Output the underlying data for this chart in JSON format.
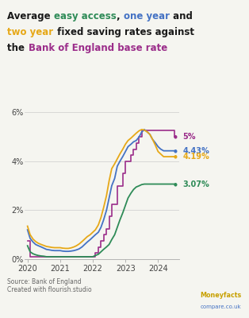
{
  "colors": {
    "base_rate": "#9b2d8a",
    "easy_access": "#2e8b57",
    "one_year": "#4472c4",
    "two_year": "#e6a817"
  },
  "end_labels": {
    "base_rate": {
      "value": "5%",
      "color": "#9b2d8a",
      "y": 5.0
    },
    "one_year": {
      "value": "4.43%",
      "color": "#4472c4",
      "y": 4.43
    },
    "two_year": {
      "value": "4.19%",
      "color": "#e6a817",
      "y": 4.19
    },
    "easy_access": {
      "value": "3.07%",
      "color": "#2e8b57",
      "y": 3.07
    }
  },
  "ylim": [
    0,
    6.5
  ],
  "yticks": [
    0,
    2,
    4,
    6
  ],
  "ytick_labels": [
    "0%",
    "2%",
    "4%",
    "6%"
  ],
  "source_text": "Source: Bank of England\nCreated with flourish.studio",
  "bg_color": "#f5f5f0",
  "base_rate": {
    "dates": [
      2020.0,
      2020.08,
      2020.17,
      2020.25,
      2020.33,
      2020.42,
      2020.5,
      2020.58,
      2020.67,
      2020.75,
      2020.83,
      2020.92,
      2021.0,
      2021.08,
      2021.17,
      2021.25,
      2021.33,
      2021.42,
      2021.5,
      2021.58,
      2021.67,
      2021.75,
      2021.83,
      2021.92,
      2022.0,
      2022.08,
      2022.17,
      2022.25,
      2022.33,
      2022.42,
      2022.5,
      2022.58,
      2022.67,
      2022.75,
      2022.83,
      2022.92,
      2023.0,
      2023.08,
      2023.17,
      2023.25,
      2023.33,
      2023.42,
      2023.5,
      2023.58,
      2023.67,
      2023.75,
      2023.83,
      2023.92,
      2024.0,
      2024.08,
      2024.17,
      2024.25,
      2024.33,
      2024.5
    ],
    "values": [
      0.75,
      0.1,
      0.1,
      0.1,
      0.1,
      0.1,
      0.1,
      0.1,
      0.1,
      0.1,
      0.1,
      0.1,
      0.1,
      0.1,
      0.1,
      0.1,
      0.1,
      0.1,
      0.1,
      0.1,
      0.1,
      0.1,
      0.1,
      0.1,
      0.1,
      0.25,
      0.5,
      0.75,
      1.0,
      1.25,
      1.75,
      2.25,
      2.25,
      3.0,
      3.0,
      3.5,
      4.0,
      4.0,
      4.25,
      4.5,
      4.75,
      5.0,
      5.25,
      5.25,
      5.25,
      5.25,
      5.25,
      5.25,
      5.25,
      5.25,
      5.25,
      5.25,
      5.25,
      5.0
    ]
  },
  "easy_access": {
    "dates": [
      2020.0,
      2020.08,
      2020.17,
      2020.25,
      2020.33,
      2020.42,
      2020.5,
      2020.58,
      2020.67,
      2020.75,
      2020.83,
      2020.92,
      2021.0,
      2021.08,
      2021.17,
      2021.25,
      2021.33,
      2021.42,
      2021.5,
      2021.58,
      2021.67,
      2021.75,
      2021.83,
      2021.92,
      2022.0,
      2022.08,
      2022.17,
      2022.25,
      2022.33,
      2022.42,
      2022.5,
      2022.58,
      2022.67,
      2022.75,
      2022.83,
      2022.92,
      2023.0,
      2023.08,
      2023.17,
      2023.25,
      2023.33,
      2023.42,
      2023.5,
      2023.58,
      2023.67,
      2023.75,
      2023.83,
      2023.92,
      2024.0,
      2024.08,
      2024.17,
      2024.25,
      2024.33,
      2024.5
    ],
    "values": [
      0.55,
      0.3,
      0.22,
      0.18,
      0.15,
      0.13,
      0.12,
      0.1,
      0.1,
      0.1,
      0.1,
      0.1,
      0.1,
      0.1,
      0.1,
      0.1,
      0.1,
      0.1,
      0.1,
      0.1,
      0.1,
      0.1,
      0.1,
      0.1,
      0.1,
      0.15,
      0.2,
      0.3,
      0.4,
      0.5,
      0.6,
      0.8,
      1.0,
      1.3,
      1.6,
      1.9,
      2.2,
      2.5,
      2.7,
      2.85,
      2.95,
      3.0,
      3.05,
      3.07,
      3.07,
      3.07,
      3.07,
      3.07,
      3.07,
      3.07,
      3.07,
      3.07,
      3.07,
      3.07
    ]
  },
  "one_year": {
    "dates": [
      2020.0,
      2020.08,
      2020.17,
      2020.25,
      2020.33,
      2020.42,
      2020.5,
      2020.58,
      2020.67,
      2020.75,
      2020.83,
      2020.92,
      2021.0,
      2021.08,
      2021.17,
      2021.25,
      2021.33,
      2021.42,
      2021.5,
      2021.58,
      2021.67,
      2021.75,
      2021.83,
      2021.92,
      2022.0,
      2022.08,
      2022.17,
      2022.25,
      2022.33,
      2022.42,
      2022.5,
      2022.58,
      2022.67,
      2022.75,
      2022.83,
      2022.92,
      2023.0,
      2023.08,
      2023.17,
      2023.25,
      2023.33,
      2023.42,
      2023.5,
      2023.58,
      2023.67,
      2023.75,
      2023.83,
      2023.92,
      2024.0,
      2024.08,
      2024.17,
      2024.25,
      2024.33,
      2024.5
    ],
    "values": [
      1.2,
      0.85,
      0.7,
      0.6,
      0.55,
      0.5,
      0.45,
      0.4,
      0.38,
      0.36,
      0.35,
      0.35,
      0.35,
      0.33,
      0.32,
      0.32,
      0.33,
      0.35,
      0.38,
      0.42,
      0.5,
      0.6,
      0.7,
      0.8,
      0.9,
      1.0,
      1.1,
      1.3,
      1.6,
      2.0,
      2.5,
      3.0,
      3.3,
      3.8,
      4.0,
      4.2,
      4.4,
      4.6,
      4.7,
      4.8,
      4.85,
      5.0,
      5.2,
      5.3,
      5.2,
      5.1,
      4.9,
      4.75,
      4.6,
      4.5,
      4.43,
      4.43,
      4.43,
      4.43
    ]
  },
  "two_year": {
    "dates": [
      2020.0,
      2020.08,
      2020.17,
      2020.25,
      2020.33,
      2020.42,
      2020.5,
      2020.58,
      2020.67,
      2020.75,
      2020.83,
      2020.92,
      2021.0,
      2021.08,
      2021.17,
      2021.25,
      2021.33,
      2021.42,
      2021.5,
      2021.58,
      2021.67,
      2021.75,
      2021.83,
      2021.92,
      2022.0,
      2022.08,
      2022.17,
      2022.25,
      2022.33,
      2022.42,
      2022.5,
      2022.58,
      2022.67,
      2022.75,
      2022.83,
      2022.92,
      2023.0,
      2023.08,
      2023.17,
      2023.25,
      2023.33,
      2023.42,
      2023.5,
      2023.58,
      2023.67,
      2023.75,
      2023.83,
      2023.92,
      2024.0,
      2024.08,
      2024.17,
      2024.25,
      2024.33,
      2024.5
    ],
    "values": [
      1.35,
      1.0,
      0.82,
      0.72,
      0.65,
      0.6,
      0.56,
      0.52,
      0.5,
      0.48,
      0.47,
      0.47,
      0.47,
      0.45,
      0.44,
      0.44,
      0.46,
      0.5,
      0.55,
      0.62,
      0.72,
      0.82,
      0.92,
      1.0,
      1.1,
      1.2,
      1.4,
      1.7,
      2.1,
      2.6,
      3.2,
      3.7,
      3.9,
      4.1,
      4.3,
      4.5,
      4.7,
      4.85,
      4.95,
      5.05,
      5.15,
      5.25,
      5.3,
      5.28,
      5.2,
      5.1,
      4.9,
      4.65,
      4.4,
      4.3,
      4.19,
      4.19,
      4.19,
      4.19
    ]
  }
}
